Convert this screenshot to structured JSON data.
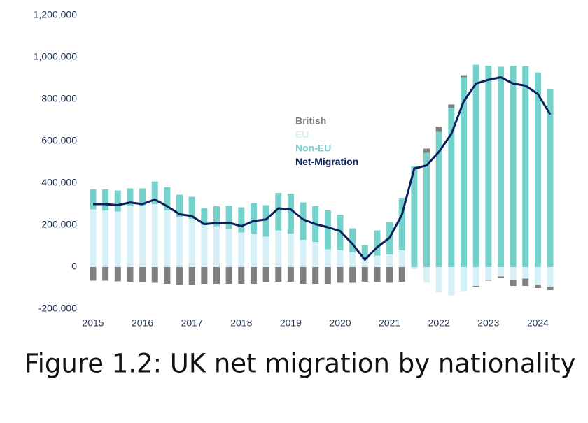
{
  "chart_data": {
    "type": "bar",
    "stacked": true,
    "title": "Figure 1.2: UK net migration by nationality",
    "categories": [
      "2015",
      null,
      null,
      null,
      "2016",
      null,
      null,
      null,
      "2017",
      null,
      null,
      null,
      "2018",
      null,
      null,
      null,
      "2019",
      null,
      null,
      null,
      "2020",
      null,
      null,
      null,
      "2021",
      null,
      null,
      null,
      "2022",
      null,
      null,
      null,
      "2023",
      null,
      null,
      null,
      "2024",
      null
    ],
    "series": [
      {
        "name": "EU",
        "color": "#d6f0f7",
        "values": [
          275000,
          270000,
          265000,
          290000,
          290000,
          300000,
          270000,
          240000,
          230000,
          200000,
          195000,
          180000,
          165000,
          160000,
          145000,
          175000,
          160000,
          130000,
          120000,
          85000,
          80000,
          70000,
          35000,
          55000,
          60000,
          80000,
          -10000,
          -75000,
          -120000,
          -135000,
          -115000,
          -90000,
          -60000,
          -45000,
          -60000,
          -55000,
          -85000,
          -95000
        ]
      },
      {
        "name": "Non-EU",
        "color": "#75d1cb",
        "values": [
          95000,
          100000,
          100000,
          85000,
          85000,
          108000,
          110000,
          105000,
          105000,
          80000,
          95000,
          112000,
          120000,
          145000,
          150000,
          178000,
          190000,
          178000,
          170000,
          185000,
          170000,
          115000,
          70000,
          120000,
          155000,
          250000,
          480000,
          545000,
          645000,
          760000,
          905000,
          965000,
          960000,
          955000,
          960000,
          958000,
          928000,
          848000
        ]
      },
      {
        "name": "British",
        "color": "#7f7f7f",
        "values": [
          -65000,
          -65000,
          -68000,
          -70000,
          -72000,
          -75000,
          -80000,
          -85000,
          -85000,
          -80000,
          -80000,
          -80000,
          -80000,
          -80000,
          -70000,
          -70000,
          -70000,
          -80000,
          -80000,
          -80000,
          -75000,
          -75000,
          -70000,
          -70000,
          -75000,
          -70000,
          0,
          20000,
          25000,
          15000,
          10000,
          -5000,
          -5000,
          -5000,
          -30000,
          -35000,
          -15000,
          -15000
        ]
      },
      {
        "name": "Net-Migration",
        "color": "#0b1f5c",
        "type": "line",
        "values": [
          300000,
          300000,
          295000,
          308000,
          300000,
          322000,
          290000,
          252000,
          243000,
          205000,
          210000,
          212000,
          195000,
          220000,
          227000,
          280000,
          275000,
          227000,
          205000,
          190000,
          172000,
          110000,
          35000,
          95000,
          140000,
          250000,
          470000,
          485000,
          550000,
          635000,
          790000,
          875000,
          893000,
          905000,
          875000,
          865000,
          825000,
          728000
        ]
      }
    ],
    "ylim": [
      -200000,
      1200000
    ],
    "yticks": [
      {
        "value": -200000,
        "label": "-200,000"
      },
      0,
      {
        "value": 200000,
        "label": "200,000"
      },
      {
        "value": 400000,
        "label": "400,000"
      },
      {
        "value": 600000,
        "label": "600,000"
      },
      {
        "value": 800000,
        "label": "800,000"
      },
      {
        "value": 1000000,
        "label": "1,000,000"
      },
      {
        "value": 1200000,
        "label": "1,200,000"
      }
    ],
    "grid": false
  }
}
